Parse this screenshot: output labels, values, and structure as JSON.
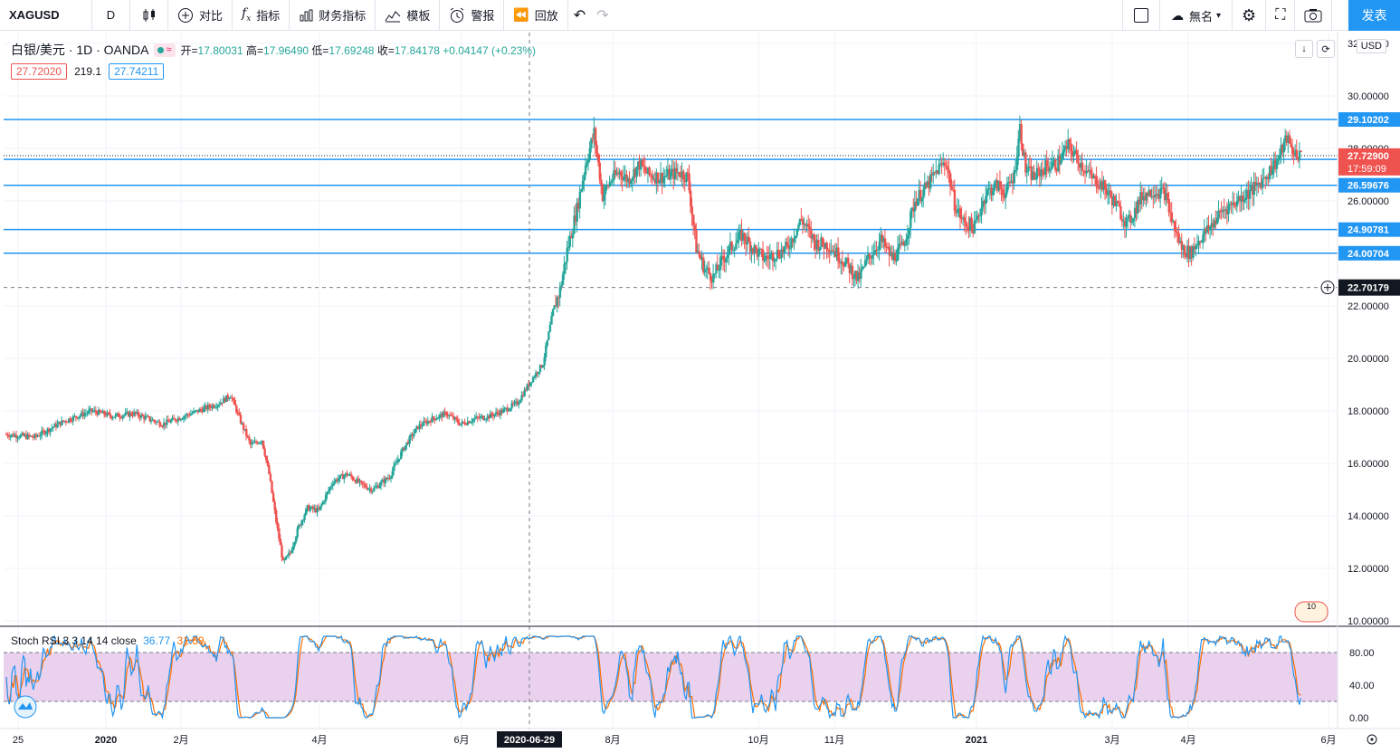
{
  "toolbar": {
    "symbol": "XAGUSD",
    "interval": "D",
    "compare_label": "对比",
    "indicators_label": "指标",
    "financials_label": "财务指标",
    "templates_label": "模板",
    "alert_label": "警报",
    "replay_label": "回放",
    "layout_name": "無名",
    "publish_label": "发表"
  },
  "legend": {
    "title": "白银/美元 · 1D · OANDA",
    "open_label": "开",
    "open": "17.80031",
    "high_label": "高",
    "high": "17.96490",
    "low_label": "低",
    "low": "17.69248",
    "close_label": "收",
    "close": "17.84178",
    "change": "+0.04147 (+0.23%)",
    "bid": "27.72020",
    "spread": "219.1",
    "ask": "27.74211"
  },
  "currency": "USD",
  "stoch": {
    "label": "Stoch RSI 3 3 14 14 close",
    "k": "36.77",
    "d": "31.69"
  },
  "colors": {
    "up": "#26a69a",
    "down": "#ef5350",
    "hline": "#2196f3",
    "accent": "#2196f3",
    "stoch_k": "#2196f3",
    "stoch_d": "#ff6d00",
    "stoch_band": "#e1bee7"
  },
  "price_axis": {
    "ticks": [
      "32.00000",
      "30.00000",
      "28.00000",
      "26.00000",
      "24.00000",
      "22.00000",
      "20.00000",
      "18.00000",
      "16.00000",
      "14.00000",
      "12.00000",
      "10.00000"
    ],
    "tick_values": [
      32,
      30,
      28,
      26,
      24,
      22,
      20,
      18,
      16,
      14,
      12,
      10
    ],
    "hline_labels": [
      "29.10202",
      "27.58197",
      "26.59676",
      "24.90781",
      "24.00704"
    ],
    "hline_values": [
      29.10202,
      27.58197,
      26.59676,
      24.90781,
      24.00704
    ],
    "current_price": "27.72900",
    "countdown": "17:59:09",
    "crosshair_price": "22.70179",
    "crosshair_value": 22.70179
  },
  "stoch_axis": {
    "ticks": [
      "80.00",
      "40.00",
      "0.00"
    ],
    "tick_values": [
      80,
      40,
      0
    ]
  },
  "time_axis": {
    "labels": [
      "25",
      "2020",
      "2月",
      "4月",
      "6月",
      "8月",
      "10月",
      "11月",
      "2021",
      "3月",
      "4月",
      "6月"
    ],
    "crosshair_date": "2020-06-29"
  },
  "chart_data": {
    "type": "candlestick",
    "title": "白银/美元 · 1D · OANDA",
    "ylim": [
      10,
      32
    ],
    "start_label": "2019-11-25",
    "anchors": [
      [
        0,
        17.1
      ],
      [
        20,
        17.0
      ],
      [
        40,
        17.6
      ],
      [
        60,
        18.0
      ],
      [
        75,
        17.8
      ],
      [
        90,
        17.9
      ],
      [
        110,
        17.5
      ],
      [
        130,
        17.9
      ],
      [
        150,
        18.3
      ],
      [
        158,
        18.6
      ],
      [
        165,
        17.6
      ],
      [
        172,
        16.7
      ],
      [
        180,
        16.9
      ],
      [
        185,
        15.6
      ],
      [
        190,
        13.8
      ],
      [
        195,
        12.2
      ],
      [
        200,
        12.6
      ],
      [
        206,
        13.6
      ],
      [
        212,
        14.3
      ],
      [
        220,
        14.2
      ],
      [
        230,
        15.3
      ],
      [
        240,
        15.6
      ],
      [
        250,
        15.2
      ],
      [
        258,
        15.0
      ],
      [
        270,
        15.5
      ],
      [
        280,
        16.6
      ],
      [
        290,
        17.4
      ],
      [
        300,
        17.7
      ],
      [
        310,
        17.9
      ],
      [
        320,
        17.5
      ],
      [
        330,
        17.7
      ],
      [
        340,
        17.8
      ],
      [
        350,
        18.0
      ],
      [
        360,
        18.3
      ],
      [
        370,
        19.2
      ],
      [
        378,
        19.8
      ],
      [
        385,
        21.8
      ],
      [
        390,
        22.6
      ],
      [
        395,
        24.1
      ],
      [
        402,
        25.7
      ],
      [
        408,
        27.4
      ],
      [
        414,
        28.6
      ],
      [
        420,
        26.2
      ],
      [
        426,
        26.8
      ],
      [
        432,
        27.1
      ],
      [
        438,
        26.8
      ],
      [
        446,
        27.4
      ],
      [
        452,
        27.0
      ],
      [
        460,
        26.9
      ],
      [
        468,
        27.0
      ],
      [
        474,
        27.1
      ],
      [
        480,
        26.9
      ],
      [
        486,
        24.2
      ],
      [
        492,
        23.4
      ],
      [
        498,
        23.1
      ],
      [
        504,
        23.7
      ],
      [
        510,
        24.2
      ],
      [
        518,
        24.7
      ],
      [
        526,
        24.2
      ],
      [
        534,
        23.8
      ],
      [
        542,
        24.0
      ],
      [
        550,
        24.2
      ],
      [
        560,
        25.3
      ],
      [
        570,
        24.4
      ],
      [
        580,
        24.3
      ],
      [
        590,
        23.7
      ],
      [
        596,
        23.3
      ],
      [
        600,
        23.0
      ],
      [
        608,
        23.9
      ],
      [
        616,
        24.5
      ],
      [
        624,
        23.8
      ],
      [
        632,
        24.3
      ],
      [
        640,
        26.0
      ],
      [
        648,
        26.5
      ],
      [
        656,
        27.2
      ],
      [
        662,
        27.5
      ],
      [
        668,
        25.9
      ],
      [
        674,
        25.2
      ],
      [
        682,
        25.0
      ],
      [
        690,
        26.3
      ],
      [
        698,
        26.6
      ],
      [
        704,
        26.3
      ],
      [
        710,
        27.0
      ],
      [
        714,
        28.8
      ],
      [
        718,
        27.2
      ],
      [
        724,
        26.9
      ],
      [
        732,
        27.3
      ],
      [
        740,
        27.4
      ],
      [
        748,
        28.1
      ],
      [
        756,
        27.5
      ],
      [
        764,
        26.9
      ],
      [
        772,
        26.6
      ],
      [
        780,
        26.0
      ],
      [
        790,
        25.1
      ],
      [
        800,
        26.2
      ],
      [
        808,
        26.4
      ],
      [
        816,
        26.3
      ],
      [
        822,
        25.1
      ],
      [
        828,
        24.2
      ],
      [
        834,
        24.0
      ],
      [
        840,
        24.5
      ],
      [
        848,
        25.0
      ],
      [
        856,
        25.6
      ],
      [
        864,
        25.9
      ],
      [
        872,
        26.2
      ],
      [
        880,
        26.5
      ],
      [
        888,
        27.0
      ],
      [
        896,
        27.6
      ],
      [
        902,
        28.4
      ],
      [
        906,
        27.9
      ],
      [
        912,
        27.7
      ]
    ],
    "horizontal_lines": [
      29.10202,
      27.58197,
      26.59676,
      24.90781,
      24.00704
    ]
  }
}
